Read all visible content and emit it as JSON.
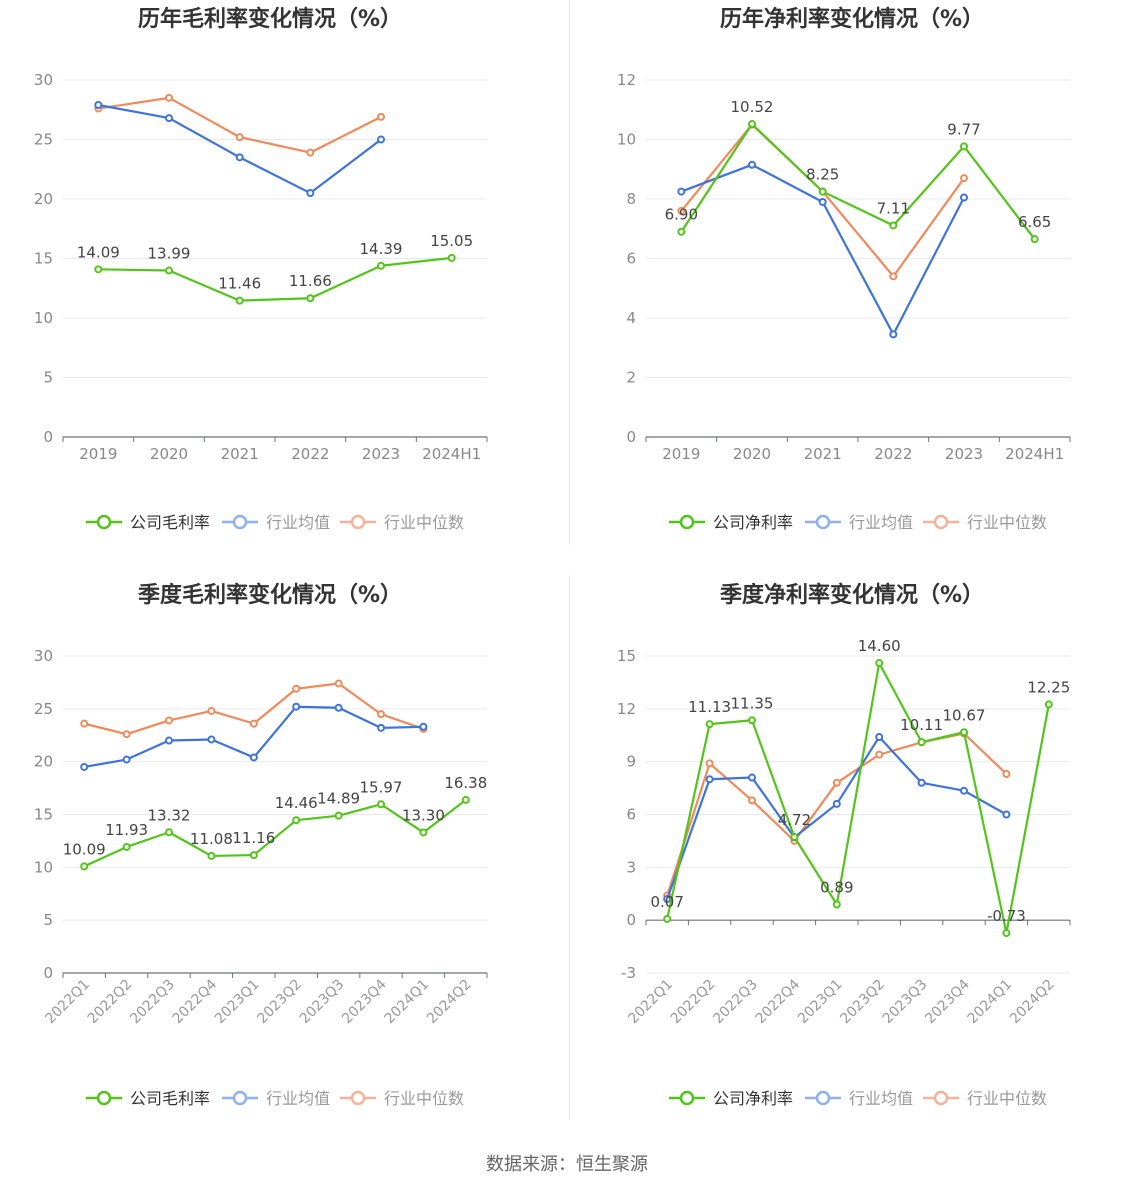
{
  "source_text": "数据来源：恒生聚源",
  "colors": {
    "company": "#52c41a",
    "avg": "#3f73d9",
    "median": "#ef8a5a"
  },
  "chart_data": [
    {
      "type": "line",
      "title": "历年毛利率变化情况（%）",
      "categories": [
        "2019",
        "2020",
        "2021",
        "2022",
        "2023",
        "2024H1"
      ],
      "ylim": [
        0,
        30
      ],
      "yticks": [
        0,
        5,
        10,
        15,
        20,
        25,
        30
      ],
      "grid": true,
      "legend": "bottom",
      "series": [
        {
          "name": "公司毛利率",
          "color_key": "company",
          "labels": true,
          "values": [
            14.09,
            13.99,
            11.46,
            11.66,
            14.39,
            15.05
          ],
          "label_text": [
            "14.09",
            "13.99",
            "11.46",
            "11.66",
            "14.39",
            "15.05"
          ]
        },
        {
          "name": "行业均值",
          "color_key": "avg",
          "labels": false,
          "values": [
            27.9,
            26.8,
            23.5,
            20.5,
            25.0,
            null
          ]
        },
        {
          "name": "行业中位数",
          "color_key": "median",
          "labels": false,
          "values": [
            27.6,
            28.5,
            25.2,
            23.9,
            26.9,
            null
          ]
        }
      ]
    },
    {
      "type": "line",
      "title": "历年净利率变化情况（%）",
      "categories": [
        "2019",
        "2020",
        "2021",
        "2022",
        "2023",
        "2024H1"
      ],
      "ylim": [
        0,
        12
      ],
      "yticks": [
        0,
        2,
        4,
        6,
        8,
        10,
        12
      ],
      "grid": true,
      "legend": "bottom",
      "series": [
        {
          "name": "公司净利率",
          "color_key": "company",
          "labels": true,
          "values": [
            6.9,
            10.52,
            8.25,
            7.11,
            9.77,
            6.65
          ],
          "label_text": [
            "6.90",
            "10.52",
            "8.25",
            "7.11",
            "9.77",
            "6.65"
          ]
        },
        {
          "name": "行业均值",
          "color_key": "avg",
          "labels": false,
          "values": [
            8.25,
            9.15,
            7.9,
            3.45,
            8.05,
            null
          ]
        },
        {
          "name": "行业中位数",
          "color_key": "median",
          "labels": false,
          "values": [
            7.6,
            10.5,
            8.25,
            5.4,
            8.7,
            null
          ]
        }
      ]
    },
    {
      "type": "line",
      "title": "季度毛利率变化情况（%）",
      "categories": [
        "2022Q1",
        "2022Q2",
        "2022Q3",
        "2022Q4",
        "2023Q1",
        "2023Q2",
        "2023Q3",
        "2023Q4",
        "2024Q1",
        "2024Q2"
      ],
      "ylim": [
        0,
        30
      ],
      "yticks": [
        0,
        5,
        10,
        15,
        20,
        25,
        30
      ],
      "grid": true,
      "legend": "bottom",
      "series": [
        {
          "name": "公司毛利率",
          "color_key": "company",
          "labels": true,
          "values": [
            10.09,
            11.93,
            13.32,
            11.08,
            11.16,
            14.46,
            14.89,
            15.97,
            13.3,
            16.38
          ],
          "label_text": [
            "10.09",
            "11.93",
            "13.32",
            "11.08",
            "11.16",
            "14.46",
            "14.89",
            "15.97",
            "13.30",
            "16.38"
          ]
        },
        {
          "name": "行业均值",
          "color_key": "avg",
          "labels": false,
          "values": [
            19.5,
            20.2,
            22.0,
            22.1,
            20.4,
            25.2,
            25.1,
            23.2,
            23.3,
            null
          ]
        },
        {
          "name": "行业中位数",
          "color_key": "median",
          "labels": false,
          "values": [
            23.6,
            22.6,
            23.9,
            24.8,
            23.6,
            26.9,
            27.4,
            24.5,
            23.1,
            null
          ]
        }
      ]
    },
    {
      "type": "line",
      "title": "季度净利率变化情况（%）",
      "categories": [
        "2022Q1",
        "2022Q2",
        "2022Q3",
        "2022Q4",
        "2023Q1",
        "2023Q2",
        "2023Q3",
        "2023Q4",
        "2024Q1",
        "2024Q2"
      ],
      "ylim": [
        -3,
        15
      ],
      "yticks": [
        -3,
        0,
        3,
        6,
        9,
        12,
        15
      ],
      "grid": true,
      "legend": "bottom",
      "series": [
        {
          "name": "公司净利率",
          "color_key": "company",
          "labels": true,
          "values": [
            0.07,
            11.13,
            11.35,
            4.72,
            0.89,
            14.6,
            10.11,
            10.67,
            -0.73,
            12.25
          ],
          "label_text": [
            "0.07",
            "11.13",
            "11.35",
            "4.72",
            "0.89",
            "14.60",
            "10.11",
            "10.67",
            "-0.73",
            "12.25"
          ]
        },
        {
          "name": "行业均值",
          "color_key": "avg",
          "labels": false,
          "values": [
            1.2,
            8.0,
            8.1,
            4.7,
            6.6,
            10.4,
            7.8,
            7.35,
            6.0,
            null
          ]
        },
        {
          "name": "行业中位数",
          "color_key": "median",
          "labels": false,
          "values": [
            1.4,
            8.9,
            6.8,
            4.5,
            7.8,
            9.4,
            10.1,
            10.6,
            8.3,
            null
          ]
        }
      ]
    }
  ]
}
